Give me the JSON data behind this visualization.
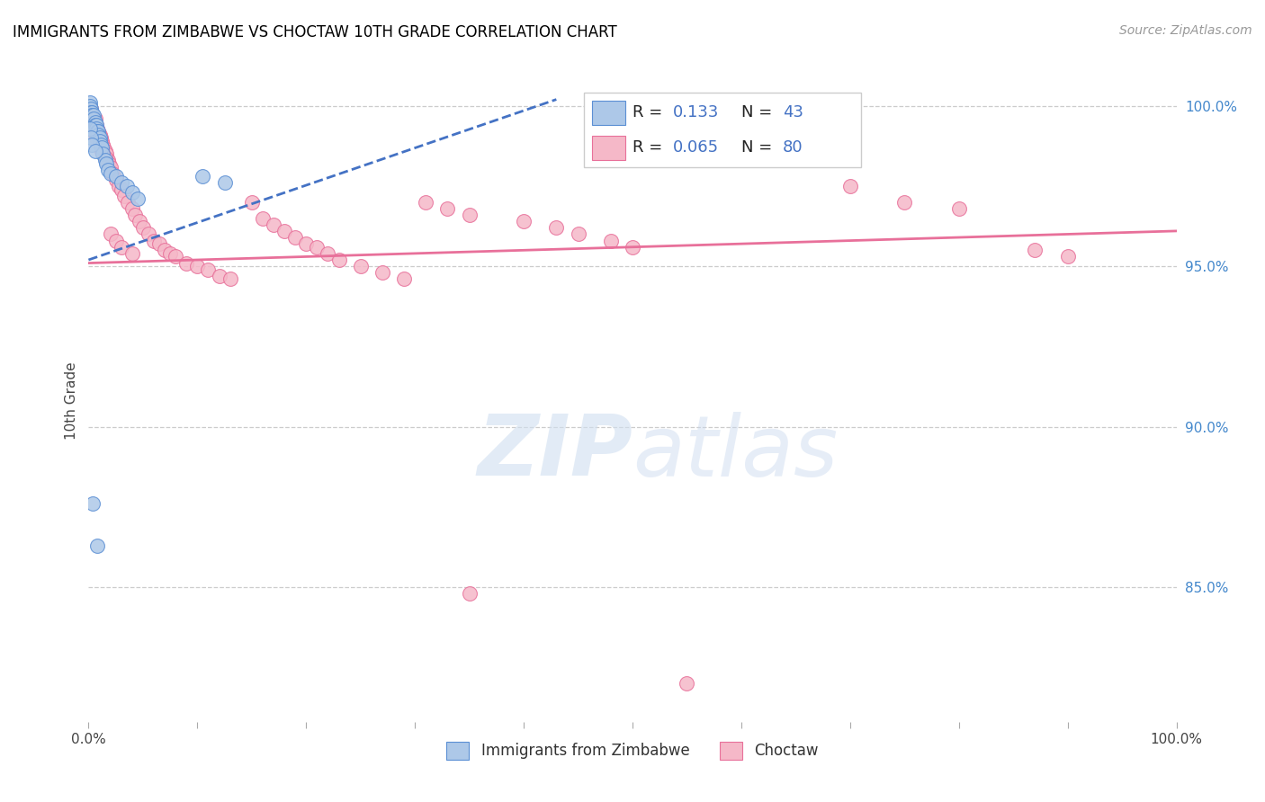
{
  "title": "IMMIGRANTS FROM ZIMBABWE VS CHOCTAW 10TH GRADE CORRELATION CHART",
  "source": "Source: ZipAtlas.com",
  "ylabel": "10th Grade",
  "right_ytick_labels": [
    "100.0%",
    "95.0%",
    "90.0%",
    "85.0%"
  ],
  "right_ytick_values": [
    1.0,
    0.95,
    0.9,
    0.85
  ],
  "legend_series1": "Immigrants from Zimbabwe",
  "legend_series2": "Choctaw",
  "blue_color": "#adc8e8",
  "pink_color": "#f5b8c8",
  "blue_edge_color": "#5b8fd4",
  "pink_edge_color": "#e8709a",
  "blue_line_color": "#4472c4",
  "pink_line_color": "#e8709a",
  "watermark_zip": "ZIP",
  "watermark_atlas": "atlas",
  "blue_R": 0.133,
  "blue_N": 43,
  "pink_R": 0.065,
  "pink_N": 80,
  "ylim_min": 0.808,
  "ylim_max": 1.008,
  "xlim_min": 0.0,
  "xlim_max": 1.0,
  "title_fontsize": 12,
  "source_fontsize": 10,
  "legend_fontsize": 14
}
